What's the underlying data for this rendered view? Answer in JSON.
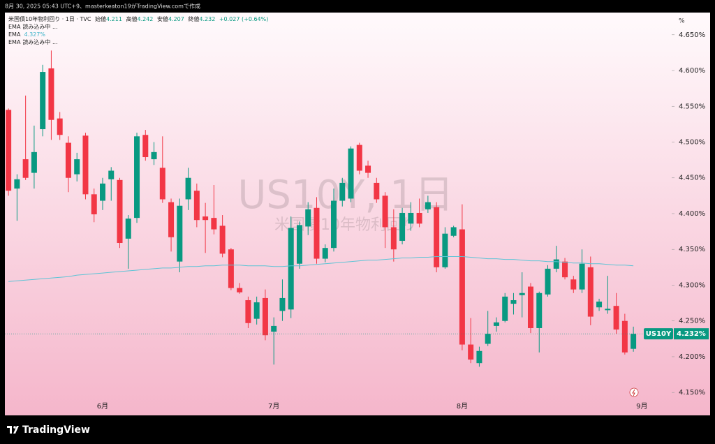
{
  "meta": {
    "created": "8月 30, 2025 05:43 UTC+9、masterkeaton19がTradingView.comで作成",
    "brand": "TradingView"
  },
  "chart_data": {
    "type": "candlestick",
    "title": "米国債10年物利回り · 1日 · TVC",
    "ohlc_legend": [
      {
        "label": "始値",
        "value": 4.211
      },
      {
        "label": "高値",
        "value": 4.242
      },
      {
        "label": "安値",
        "value": 4.207
      },
      {
        "label": "終値",
        "value": 4.232
      }
    ],
    "change": "+0.027 (+0.64%)",
    "indicators": [
      {
        "name": "EMA",
        "status": "読み込み中 ..."
      },
      {
        "name": "EMA",
        "value_label": "4.327%"
      },
      {
        "name": "EMA",
        "status": "読み込み中 ..."
      }
    ],
    "watermark": "US10Y, 1日",
    "watermark_subtitle": "米国債10年物利回り",
    "y_unit": "%",
    "categories": [
      null,
      null,
      null,
      null,
      null,
      null,
      null,
      null,
      null,
      null,
      null,
      "6月",
      null,
      null,
      null,
      null,
      null,
      null,
      null,
      null,
      null,
      null,
      null,
      null,
      null,
      null,
      null,
      null,
      null,
      null,
      null,
      "7月",
      null,
      null,
      null,
      null,
      null,
      null,
      null,
      null,
      null,
      null,
      null,
      null,
      null,
      null,
      null,
      null,
      null,
      null,
      null,
      null,
      null,
      "8月",
      null,
      null,
      null,
      null,
      null,
      null,
      null,
      null,
      null,
      null,
      null,
      null,
      null,
      null,
      null,
      null,
      null,
      null,
      null,
      null,
      "9月"
    ],
    "open": [
      4.545,
      4.435,
      4.476,
      4.457,
      4.518,
      4.603,
      4.533,
      4.499,
      4.455,
      4.509,
      4.427,
      4.418,
      4.448,
      4.447,
      4.365,
      4.394,
      4.51,
      4.476,
      4.464,
      4.416,
      4.333,
      4.42,
      4.432,
      4.396,
      4.394,
      4.383,
      4.35,
      4.296,
      4.279,
      4.253,
      4.282,
      4.235,
      4.264,
      4.266,
      4.33,
      4.382,
      4.408,
      4.337,
      4.352,
      4.418,
      4.421,
      4.496,
      4.467,
      4.443,
      4.425,
      4.381,
      4.362,
      4.386,
      4.401,
      4.406,
      4.409,
      4.325,
      4.369,
      4.378,
      4.217,
      4.191,
      4.218,
      4.243,
      4.25,
      4.274,
      4.286,
      4.298,
      4.24,
      4.287,
      4.323,
      4.333,
      4.308,
      4.294,
      4.325,
      4.269,
      4.265,
      4.271,
      4.25,
      4.211,
      null
    ],
    "high": [
      4.547,
      4.455,
      4.565,
      4.523,
      4.608,
      4.628,
      4.542,
      4.508,
      4.485,
      4.513,
      4.435,
      4.45,
      4.465,
      4.45,
      4.398,
      4.513,
      4.517,
      4.5,
      4.508,
      4.421,
      4.421,
      4.464,
      4.442,
      4.415,
      4.44,
      4.398,
      4.352,
      4.303,
      4.284,
      4.284,
      4.294,
      4.255,
      4.308,
      4.396,
      4.389,
      4.416,
      4.423,
      4.357,
      4.435,
      4.45,
      4.494,
      4.499,
      4.474,
      4.45,
      4.43,
      4.406,
      4.408,
      4.416,
      4.421,
      4.425,
      4.416,
      4.381,
      4.383,
      4.413,
      4.254,
      4.214,
      4.264,
      4.255,
      4.289,
      4.289,
      4.318,
      4.303,
      4.291,
      4.328,
      4.355,
      4.338,
      4.313,
      4.35,
      4.34,
      4.281,
      4.313,
      4.289,
      4.26,
      4.242,
      null
    ],
    "low": [
      4.425,
      4.39,
      4.447,
      4.435,
      4.508,
      4.503,
      4.503,
      4.43,
      4.445,
      4.42,
      4.388,
      4.405,
      4.418,
      4.352,
      4.323,
      4.387,
      4.474,
      4.468,
      4.415,
      4.347,
      4.318,
      4.405,
      4.381,
      4.345,
      4.371,
      4.339,
      4.293,
      4.288,
      4.24,
      4.245,
      4.223,
      4.189,
      4.25,
      4.254,
      4.323,
      4.37,
      4.33,
      4.332,
      4.347,
      4.41,
      4.416,
      4.455,
      4.45,
      4.415,
      4.352,
      4.333,
      4.357,
      4.376,
      4.381,
      4.401,
      4.318,
      4.323,
      4.367,
      4.209,
      4.191,
      4.186,
      4.215,
      4.235,
      4.248,
      4.259,
      4.255,
      4.233,
      4.206,
      4.284,
      4.318,
      4.308,
      4.289,
      4.289,
      4.244,
      4.264,
      4.26,
      4.232,
      4.203,
      4.207,
      null
    ],
    "close": [
      4.432,
      4.448,
      4.45,
      4.486,
      4.598,
      4.531,
      4.51,
      4.45,
      4.476,
      4.427,
      4.399,
      4.442,
      4.46,
      4.359,
      4.393,
      4.508,
      4.479,
      4.486,
      4.42,
      4.367,
      4.411,
      4.45,
      4.391,
      4.391,
      4.378,
      4.344,
      4.296,
      4.29,
      4.247,
      4.276,
      4.23,
      4.243,
      4.282,
      4.38,
      4.384,
      4.406,
      4.337,
      4.352,
      4.418,
      4.443,
      4.491,
      4.46,
      4.457,
      4.42,
      4.381,
      4.35,
      4.401,
      4.401,
      4.386,
      4.416,
      4.325,
      4.372,
      4.381,
      4.217,
      4.196,
      4.208,
      4.232,
      4.248,
      4.284,
      4.279,
      4.289,
      4.24,
      4.289,
      4.323,
      4.336,
      4.311,
      4.294,
      4.33,
      4.256,
      4.277,
      4.267,
      4.238,
      4.206,
      4.232,
      null
    ],
    "up_color": "#089981",
    "down_color": "#f23645",
    "ema": {
      "color": "#5cc4d6",
      "values": [
        4.305,
        4.306,
        4.307,
        4.308,
        4.309,
        4.31,
        4.311,
        4.312,
        4.314,
        4.315,
        4.316,
        4.317,
        4.318,
        4.319,
        4.32,
        4.321,
        4.322,
        4.323,
        4.324,
        4.324,
        4.325,
        4.326,
        4.326,
        4.327,
        4.327,
        4.328,
        4.328,
        4.328,
        4.327,
        4.327,
        4.327,
        4.326,
        4.326,
        4.327,
        4.327,
        4.328,
        4.329,
        4.33,
        4.331,
        4.332,
        4.333,
        4.334,
        4.335,
        4.335,
        4.336,
        4.337,
        4.338,
        4.338,
        4.339,
        4.339,
        4.34,
        4.34,
        4.34,
        4.34,
        4.339,
        4.338,
        4.337,
        4.337,
        4.336,
        4.336,
        4.335,
        4.334,
        4.334,
        4.333,
        4.333,
        4.332,
        4.331,
        4.331,
        4.33,
        4.33,
        4.329,
        4.328,
        4.328,
        4.327,
        null
      ]
    },
    "last_price": {
      "symbol": "US10Y",
      "value": 4.232,
      "label": "4.232%",
      "color": "#089981"
    },
    "ylim": [
      4.118,
      4.681
    ],
    "yticks": [
      {
        "value": 4.15,
        "label": "4.150%"
      },
      {
        "value": 4.2,
        "label": "4.200%"
      },
      {
        "value": 4.25,
        "label": "4.250%"
      },
      {
        "value": 4.3,
        "label": "4.300%"
      },
      {
        "value": 4.35,
        "label": "4.350%"
      },
      {
        "value": 4.4,
        "label": "4.400%"
      },
      {
        "value": 4.45,
        "label": "4.450%"
      },
      {
        "value": 4.5,
        "label": "4.500%"
      },
      {
        "value": 4.55,
        "label": "4.550%"
      },
      {
        "value": 4.6,
        "label": "4.600%"
      },
      {
        "value": 4.65,
        "label": "4.650%"
      }
    ]
  }
}
